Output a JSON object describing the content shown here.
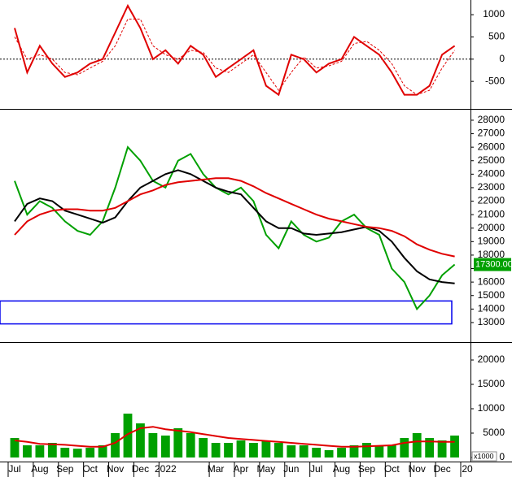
{
  "chart_data": [
    {
      "type": "line",
      "ylim": [
        -1100,
        1330
      ],
      "yticks": [
        1000,
        500,
        0,
        -500
      ],
      "zero_line": true,
      "series": [
        {
          "color": "#e00000",
          "dashed": false,
          "values": [
            700,
            -300,
            300,
            -100,
            -400,
            -300,
            -100,
            0,
            600,
            1200,
            700,
            0,
            200,
            -100,
            300,
            100,
            -400,
            -200,
            0,
            200,
            -600,
            -800,
            100,
            0,
            -300,
            -100,
            0,
            500,
            300,
            100,
            -300,
            -800,
            -800,
            -600,
            100,
            300,
            null
          ]
        },
        {
          "color": "#e00000",
          "dashed": true,
          "values": [
            500,
            0,
            100,
            0,
            -300,
            -350,
            -200,
            -50,
            300,
            900,
            900,
            300,
            100,
            0,
            200,
            150,
            -200,
            -300,
            -100,
            100,
            -300,
            -700,
            -300,
            50,
            -200,
            -150,
            -50,
            350,
            400,
            200,
            -100,
            -600,
            -800,
            -700,
            -200,
            200,
            null
          ]
        }
      ]
    },
    {
      "type": "line",
      "ylim": [
        11730,
        28720
      ],
      "yticks": [
        13000,
        14000,
        15000,
        16000,
        17000,
        18000,
        19000,
        20000,
        21000,
        22000,
        23000,
        24000,
        25000,
        26000,
        27000,
        28000
      ],
      "band": [
        12900,
        14600
      ],
      "band_color": "#0000ee",
      "last_value": 17300,
      "last_value_label": "17300.00",
      "last_value_color": "#00a000",
      "series": [
        {
          "color": "#00a000",
          "values": [
            23500,
            21000,
            22000,
            21500,
            20500,
            19800,
            19500,
            20500,
            23000,
            26000,
            25000,
            23500,
            23000,
            25000,
            25500,
            24000,
            23000,
            22500,
            23000,
            22000,
            19500,
            18500,
            20500,
            19500,
            19000,
            19300,
            20500,
            21000,
            20000,
            19500,
            17000,
            16000,
            14000,
            15000,
            16500,
            17300,
            null
          ]
        },
        {
          "color": "#000000",
          "values": [
            20500,
            21800,
            22200,
            22000,
            21300,
            21000,
            20700,
            20400,
            20800,
            22000,
            23000,
            23500,
            24000,
            24300,
            24000,
            23500,
            23000,
            22700,
            22500,
            21500,
            20500,
            20000,
            20000,
            19600,
            19500,
            19600,
            19700,
            19900,
            20100,
            19800,
            19000,
            17800,
            16800,
            16200,
            16000,
            15900,
            null
          ]
        },
        {
          "color": "#e00000",
          "values": [
            19500,
            20500,
            21000,
            21300,
            21400,
            21400,
            21300,
            21300,
            21500,
            22000,
            22500,
            22800,
            23200,
            23400,
            23500,
            23600,
            23700,
            23700,
            23500,
            23100,
            22600,
            22200,
            21800,
            21400,
            21000,
            20700,
            20500,
            20300,
            20100,
            20000,
            19800,
            19400,
            18800,
            18400,
            18100,
            17900,
            null
          ]
        }
      ]
    },
    {
      "type": "bar",
      "ylim": [
        0,
        23170
      ],
      "yticks": [
        0,
        5000,
        10000,
        15000,
        20000
      ],
      "unit_label": "x1000",
      "categories": [
        "Jul",
        null,
        "Aug",
        null,
        "Sep",
        null,
        "Oct",
        null,
        "Nov",
        null,
        "Dec",
        null,
        "2022",
        null,
        null,
        null,
        "Mar",
        null,
        "Apr",
        null,
        "May",
        null,
        "Jun",
        null,
        "Jul",
        null,
        "Aug",
        null,
        "Sep",
        null,
        "Oct",
        null,
        "Nov",
        null,
        "Dec",
        null,
        "20"
      ],
      "series": [
        {
          "type": "bar",
          "color": "#00a000",
          "values": [
            4000,
            2500,
            2500,
            3000,
            2000,
            1800,
            2000,
            2500,
            5000,
            9000,
            7000,
            5000,
            4500,
            6000,
            5000,
            4000,
            3000,
            3000,
            3500,
            3000,
            3500,
            3000,
            2500,
            2500,
            2000,
            1500,
            2000,
            2500,
            3000,
            2500,
            2500,
            4000,
            5000,
            4000,
            3500,
            4500,
            null
          ]
        },
        {
          "type": "line",
          "color": "#e00000",
          "values": [
            3500,
            3200,
            2800,
            2700,
            2600,
            2400,
            2200,
            2200,
            3000,
            4800,
            6000,
            6300,
            5800,
            5500,
            5200,
            4800,
            4400,
            4000,
            3800,
            3600,
            3400,
            3200,
            3000,
            2800,
            2600,
            2400,
            2200,
            2200,
            2300,
            2400,
            2500,
            3000,
            3300,
            3300,
            3200,
            3200,
            null
          ]
        }
      ]
    }
  ]
}
